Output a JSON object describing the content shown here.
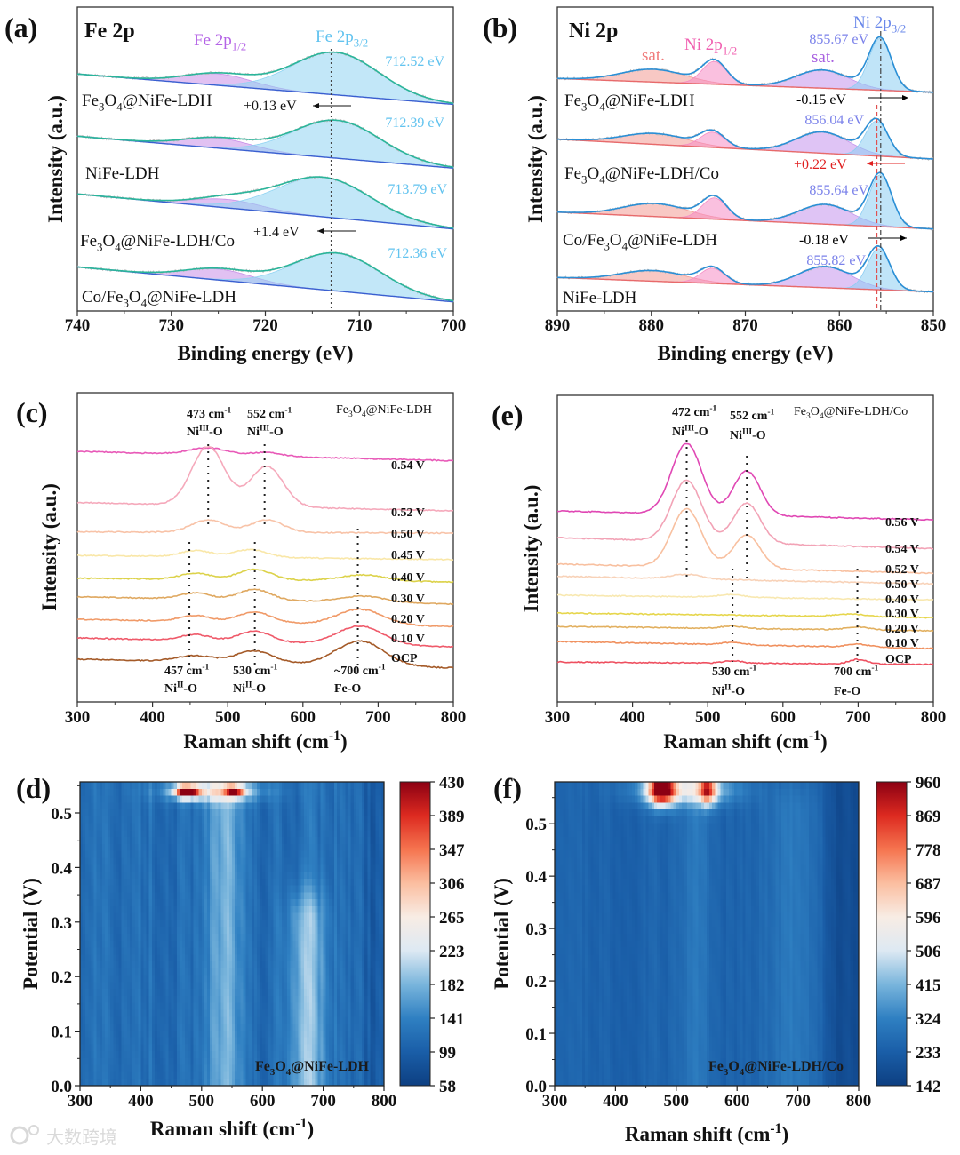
{
  "watermark": "大数跨境",
  "colors": {
    "heatmap_colormap": [
      "#0d3f82",
      "#1a5ea8",
      "#2f80c2",
      "#79b5dc",
      "#dde9f3",
      "#f8ece4",
      "#fbbea0",
      "#f5744f",
      "#dd2a20",
      "#8c0013"
    ]
  },
  "chart_data": [
    {
      "panel": "(a)",
      "type": "line",
      "title": "Fe 2p",
      "xlabel": "Binding energy (eV)",
      "ylabel": "Intensity (a.u.)",
      "xlim": [
        740,
        700
      ],
      "xticks": [
        740,
        730,
        720,
        710,
        700
      ],
      "ylim": [
        0,
        100
      ],
      "component_labels": [
        {
          "text": "Fe 2p1/2",
          "color": "#b463e6"
        },
        {
          "text": "Fe 2p3/2",
          "color": "#62c3ef"
        }
      ],
      "component_colors": [
        "#c88ee8",
        "#8fd3f2"
      ],
      "envelope_color": "#2ab59a",
      "baseline_color": "#3a5fd0",
      "reference_line_eV": 713,
      "series": [
        {
          "name": "Fe3O4@NiFe-LDH",
          "peak_label": "712.52 eV",
          "baseline": [
            78,
            68
          ],
          "peaks": [
            [
              725,
              3.8,
              3.6
            ],
            [
              712.52,
              14,
              4.6
            ]
          ]
        },
        {
          "name": "NiFe-LDH",
          "peak_label": "712.39 eV",
          "baseline": [
            57.5,
            47
          ],
          "peaks": [
            [
              725,
              3.3,
              3.6
            ],
            [
              712.39,
              12.5,
              4.6
            ]
          ]
        },
        {
          "name": "Fe3O4@NiFe-LDH/Co",
          "peak_label": "713.79 eV",
          "baseline": [
            38.5,
            27
          ],
          "peaks": [
            [
              724,
              2.8,
              3.6
            ],
            [
              713.79,
              13,
              5.0
            ]
          ]
        },
        {
          "name": "Co/Fe3O4@NiFe-LDH",
          "peak_label": "712.36 eV",
          "baseline": [
            14.5,
            3
          ],
          "peaks": [
            [
              725,
              3.6,
              3.6
            ],
            [
              712.36,
              12.5,
              4.6
            ]
          ]
        }
      ],
      "shift_annotations": [
        {
          "text": "+0.13 eV",
          "direction": "left"
        },
        {
          "text": "+1.4 eV",
          "direction": "left"
        }
      ]
    },
    {
      "panel": "(b)",
      "type": "line",
      "title": "Ni 2p",
      "xlabel": "Binding energy (eV)",
      "ylabel": "Intensity (a.u.)",
      "xlim": [
        890,
        850
      ],
      "xticks": [
        890,
        880,
        870,
        860,
        850
      ],
      "ylim": [
        0,
        100
      ],
      "component_labels": [
        {
          "text": "sat.",
          "color": "#f07a7a"
        },
        {
          "text": "Ni 2p1/2",
          "color": "#f060b0"
        },
        {
          "text": "sat.",
          "color": "#a860e0"
        },
        {
          "text": "Ni 2p3/2",
          "color": "#6a88ea"
        }
      ],
      "component_colors": [
        "#f39a94",
        "#f58cc4",
        "#c494ec",
        "#8ccdf2"
      ],
      "envelope_color": "#2a8fd6",
      "baseline_color": "#e86a6a",
      "reference_line_eV": 855.6,
      "reference_line_2_eV": 856.0,
      "series": [
        {
          "name": "Fe3O4@NiFe-LDH",
          "peak_label": "855.67 eV",
          "baseline": [
            76.5,
            72
          ],
          "peaks": [
            [
              879.8,
              4.2,
              3.4
            ],
            [
              873.3,
              7.5,
              1.3
            ],
            [
              861.8,
              6,
              2.8
            ],
            [
              855.67,
              17,
              1.2
            ]
          ]
        },
        {
          "name": "Fe3O4@NiFe-LDH/Co",
          "peak_label": "856.04 eV",
          "baseline": [
            56.5,
            50
          ],
          "peaks": [
            [
              879.6,
              3.6,
              3.4
            ],
            [
              873.5,
              5,
              1.3
            ],
            [
              861.8,
              7,
              2.8
            ],
            [
              856.04,
              11.5,
              1.2
            ]
          ]
        },
        {
          "name": "Co/Fe3O4@NiFe-LDH",
          "peak_label": "855.64 eV",
          "baseline": [
            32.5,
            27
          ],
          "peaks": [
            [
              879.6,
              4.3,
              3.4
            ],
            [
              873.3,
              7,
              1.3
            ],
            [
              861.5,
              6.5,
              2.8
            ],
            [
              855.64,
              17,
              1.2
            ]
          ]
        },
        {
          "name": "NiFe-LDH",
          "peak_label": "855.82 eV",
          "baseline": [
            11,
            6.3
          ],
          "peaks": [
            [
              879.8,
              3.5,
              3.4
            ],
            [
              873.5,
              5,
              1.3
            ],
            [
              861.5,
              7,
              2.8
            ],
            [
              855.82,
              13.5,
              1.2
            ]
          ]
        }
      ],
      "shift_annotations": [
        {
          "text": "-0.15 eV",
          "direction": "right",
          "color": "#000000"
        },
        {
          "text": "+0.22 eV",
          "direction": "left",
          "color": "#e02020"
        },
        {
          "text": "-0.18 eV",
          "direction": "right",
          "color": "#000000"
        }
      ]
    },
    {
      "panel": "(c)",
      "type": "line",
      "sample": "Fe3O4@NiFe-LDH",
      "xlabel": "Raman shift (cm-1)",
      "ylabel": "Intensity (a.u.)",
      "xlim": [
        300,
        800
      ],
      "xticks": [
        300,
        400,
        500,
        600,
        700,
        800
      ],
      "ylim": [
        0,
        100
      ],
      "peak_annotations": [
        {
          "shift": "473 cm-1",
          "assignment": "NiIII-O",
          "x": 474
        },
        {
          "shift": "552 cm-1",
          "assignment": "NiIII-O",
          "x": 549
        },
        {
          "shift": "457 cm-1",
          "assignment": "NiII-O",
          "x": 449
        },
        {
          "shift": "530 cm-1",
          "assignment": "NiII-O",
          "x": 536
        },
        {
          "shift": "~700 cm-1",
          "assignment": "Fe-O",
          "x": 673
        }
      ],
      "series": [
        {
          "name": "0.54 V",
          "color": "#e85ab8",
          "baseline": [
            81,
            78
          ],
          "peaks": [
            [
              474,
              2.2,
              25
            ],
            [
              552,
              1.2,
              20
            ]
          ]
        },
        {
          "name": "0.52 V",
          "color": "#f5a9bb",
          "baseline": [
            64.5,
            61.8
          ],
          "peaks": [
            [
              474,
              19,
              22
            ],
            [
              552,
              13,
              22
            ]
          ]
        },
        {
          "name": "0.50 V",
          "color": "#f8c3a8",
          "baseline": [
            55,
            54.6
          ],
          "peaks": [
            [
              474,
              4,
              22
            ],
            [
              552,
              4,
              22
            ]
          ]
        },
        {
          "name": "0.45 V",
          "color": "#f9e7a8",
          "baseline": [
            47.4,
            46
          ],
          "peaks": [
            [
              457,
              2,
              20
            ],
            [
              530,
              2.5,
              22
            ]
          ]
        },
        {
          "name": "0.40 V",
          "color": "#dcd24a",
          "baseline": [
            40,
            38.8
          ],
          "peaks": [
            [
              457,
              2,
              20
            ],
            [
              536,
              3.5,
              22
            ],
            [
              680,
              2,
              30
            ]
          ]
        },
        {
          "name": "0.30 V",
          "color": "#dfa860",
          "baseline": [
            34,
            31.6
          ],
          "peaks": [
            [
              457,
              2,
              20
            ],
            [
              536,
              3.5,
              22
            ],
            [
              680,
              2,
              30
            ]
          ]
        },
        {
          "name": "0.20 V",
          "color": "#f09a68",
          "baseline": [
            26.7,
            24.4
          ],
          "peaks": [
            [
              457,
              2,
              20
            ],
            [
              536,
              3.5,
              22
            ],
            [
              676,
              5,
              30
            ]
          ]
        },
        {
          "name": "0.10 V",
          "color": "#ef5a6a",
          "baseline": [
            20.7,
            17.8
          ],
          "peaks": [
            [
              457,
              2,
              20
            ],
            [
              536,
              3.5,
              22
            ],
            [
              676,
              6,
              30
            ]
          ]
        },
        {
          "name": "OCP",
          "color": "#a45a28",
          "baseline": [
            13.8,
            11
          ],
          "peaks": [
            [
              457,
              2,
              25
            ],
            [
              536,
              4,
              25
            ],
            [
              676,
              8,
              32
            ]
          ]
        }
      ]
    },
    {
      "panel": "(e)",
      "type": "line",
      "sample": "Fe3O4@NiFe-LDH/Co",
      "xlabel": "Raman shift (cm-1)",
      "ylabel": "Intensity (a.u.)",
      "xlim": [
        300,
        800
      ],
      "xticks": [
        300,
        400,
        500,
        600,
        700,
        800
      ],
      "ylim": [
        0,
        100
      ],
      "peak_annotations": [
        {
          "shift": "472 cm-1",
          "assignment": "NiIII-O",
          "x": 472
        },
        {
          "shift": "552 cm-1",
          "assignment": "NiIII-O",
          "x": 552
        },
        {
          "shift": "530 cm-1",
          "assignment": "NiII-O",
          "x": 533
        },
        {
          "shift": "700 cm-1",
          "assignment": "Fe-O",
          "x": 699
        }
      ],
      "series": [
        {
          "name": "0.56 V",
          "color": "#e048b4",
          "baseline": [
            62.3,
            59.4
          ],
          "peaks": [
            [
              472,
              23,
              20
            ],
            [
              552,
              14.5,
              18
            ]
          ]
        },
        {
          "name": "0.54 V",
          "color": "#f2a3b6",
          "baseline": [
            53.6,
            50
          ],
          "peaks": [
            [
              472,
              20,
              20
            ],
            [
              552,
              13,
              18
            ]
          ]
        },
        {
          "name": "0.52 V",
          "color": "#f8c0a0",
          "baseline": [
            45,
            42
          ],
          "peaks": [
            [
              472,
              19,
              20
            ],
            [
              552,
              11,
              18
            ]
          ]
        },
        {
          "name": "0.50 V",
          "color": "#f8d2b8",
          "baseline": [
            41,
            38.5
          ],
          "peaks": [
            [
              472,
              1.5,
              20
            ]
          ]
        },
        {
          "name": "0.40 V",
          "color": "#f8e8b0",
          "baseline": [
            34.8,
            33.3
          ],
          "peaks": [
            [
              530,
              0.8,
              20
            ]
          ]
        },
        {
          "name": "0.30 V",
          "color": "#e6d64c",
          "baseline": [
            29,
            27.5
          ],
          "peaks": [
            [
              690,
              0.8,
              20
            ]
          ]
        },
        {
          "name": "0.20 V",
          "color": "#e2b060",
          "baseline": [
            24.6,
            23.2
          ],
          "peaks": [
            [
              533,
              0.8,
              15
            ],
            [
              700,
              1,
              15
            ]
          ]
        },
        {
          "name": "0.10 V",
          "color": "#f0905e",
          "baseline": [
            19.7,
            17.4
          ],
          "peaks": [
            [
              533,
              0.8,
              15
            ],
            [
              700,
              1,
              15
            ]
          ]
        },
        {
          "name": "OCP",
          "color": "#ee5060",
          "baseline": [
            13,
            12.2
          ],
          "peaks": [
            [
              533,
              0.8,
              12
            ],
            [
              700,
              1.5,
              12
            ]
          ]
        }
      ]
    },
    {
      "panel": "(d)",
      "type": "heatmap",
      "sample": "Fe3O4@NiFe-LDH",
      "xlabel": "Raman shift (cm-1)",
      "ylabel": "Potential (V)",
      "xlim": [
        300,
        800
      ],
      "xticks": [
        300,
        400,
        500,
        600,
        700,
        800
      ],
      "ylim": [
        0,
        0.557
      ],
      "yticks": [
        "0.0",
        "0.1",
        "0.2",
        "0.3",
        "0.4",
        "0.5"
      ],
      "zlim": [
        58,
        430
      ],
      "colorbar_ticks": [
        "430",
        "389",
        "347",
        "306",
        "265",
        "223",
        "182",
        "141",
        "99",
        "58"
      ],
      "background": 122,
      "column_noise": 26,
      "bands": [
        {
          "raman_shift": 540,
          "width": 18,
          "gain": 60,
          "max_potential": 0.56
        },
        {
          "raman_shift": 672,
          "width": 22,
          "gain": 70,
          "max_potential": 0.3
        }
      ],
      "dark_region": {
        "from": 740,
        "gain": -28
      },
      "hotspots": [
        {
          "raman_shift": 520,
          "potential": 0.54,
          "intensity": 235,
          "width": 55,
          "potential_width": 0.014
        },
        {
          "raman_shift": 476,
          "potential": 0.54,
          "intensity": 430,
          "width": 14,
          "potential_width": 0.008
        },
        {
          "raman_shift": 555,
          "potential": 0.54,
          "intensity": 320,
          "width": 11,
          "potential_width": 0.007
        }
      ]
    },
    {
      "panel": "(f)",
      "type": "heatmap",
      "sample": "Fe3O4@NiFe-LDH/Co",
      "xlabel": "Raman shift (cm-1)",
      "ylabel": "Potential (V)",
      "xlim": [
        300,
        800
      ],
      "xticks": [
        300,
        400,
        500,
        600,
        700,
        800
      ],
      "ylim": [
        0,
        0.58
      ],
      "yticks": [
        "0.0",
        "0.1",
        "0.2",
        "0.3",
        "0.4",
        "0.5"
      ],
      "zlim": [
        142,
        960
      ],
      "colorbar_ticks": [
        "960",
        "869",
        "778",
        "687",
        "596",
        "506",
        "415",
        "324",
        "233",
        "142"
      ],
      "background": 245,
      "column_noise": 22,
      "bands": [
        {
          "raman_shift": 530,
          "width": 22,
          "gain": 55,
          "max_potential": 0.58
        },
        {
          "raman_shift": 690,
          "width": 30,
          "gain": 55,
          "max_potential": 0.52
        }
      ],
      "dark_region": {
        "from": 735,
        "gain": -70
      },
      "hotspots": [
        {
          "raman_shift": 515,
          "potential": 0.565,
          "intensity": 520,
          "width": 55,
          "potential_width": 0.02
        },
        {
          "raman_shift": 476,
          "potential": 0.565,
          "intensity": 960,
          "width": 15,
          "potential_width": 0.02
        },
        {
          "raman_shift": 552,
          "potential": 0.565,
          "intensity": 700,
          "width": 10,
          "potential_width": 0.02
        }
      ]
    }
  ]
}
